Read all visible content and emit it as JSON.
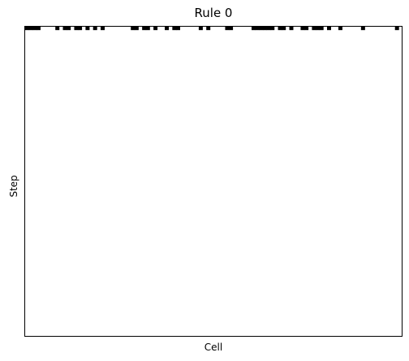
{
  "chart_data": {
    "type": "heatmap",
    "title": "Rule 0",
    "xlabel": "Cell",
    "ylabel": "Step",
    "rule": 0,
    "steps": 100,
    "cells": 100,
    "grid": false,
    "colors": {
      "on": "#000000",
      "off": "#ffffff",
      "frame": "#000000"
    },
    "initial_row": [
      1,
      1,
      1,
      1,
      0,
      0,
      0,
      0,
      1,
      0,
      1,
      1,
      0,
      1,
      1,
      0,
      1,
      0,
      1,
      0,
      1,
      0,
      0,
      0,
      0,
      0,
      0,
      0,
      1,
      1,
      0,
      1,
      1,
      0,
      1,
      0,
      0,
      1,
      0,
      1,
      1,
      0,
      0,
      0,
      0,
      0,
      1,
      0,
      1,
      0,
      0,
      0,
      0,
      1,
      1,
      0,
      0,
      0,
      0,
      0,
      1,
      1,
      1,
      1,
      1,
      1,
      0,
      1,
      1,
      0,
      1,
      0,
      0,
      1,
      1,
      0,
      1,
      1,
      1,
      0,
      1,
      0,
      0,
      1,
      0,
      0,
      0,
      0,
      0,
      1,
      0,
      0,
      0,
      0,
      0,
      0,
      0,
      0,
      1,
      0
    ]
  }
}
